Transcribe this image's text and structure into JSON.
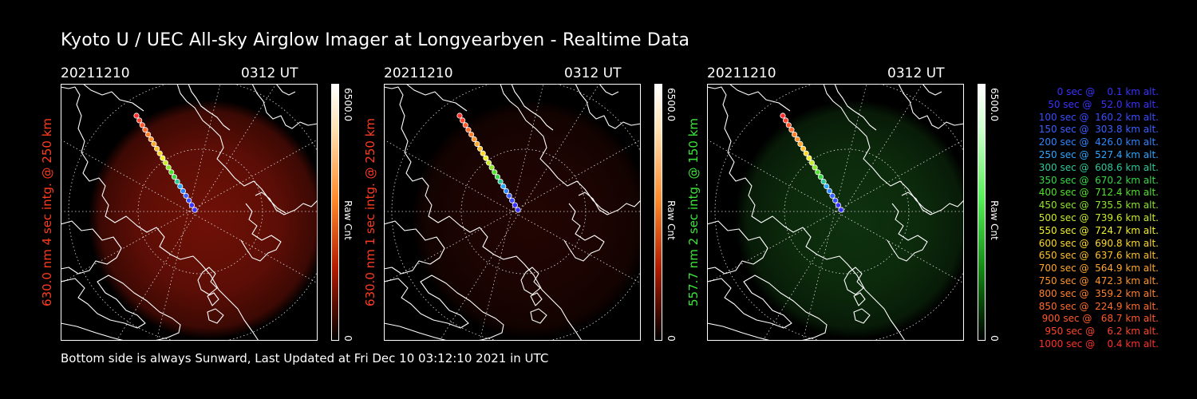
{
  "title": "Kyoto U / UEC All-sky Airglow Imager at Longyearbyen - Realtime Data",
  "footer": "Bottom side is always Sunward, Last Updated at Fri Dec 10 03:12:10 2021 in UTC",
  "colorbar": {
    "max_label": "6500.0",
    "min_label": "0",
    "unit_label": "Raw Cnt"
  },
  "panels": [
    {
      "date": "20211210",
      "time": "0312 UT",
      "side_label": "630.0 nm 4 sec intg. @ 250 km",
      "side_color": "#ff3b1f",
      "glow": "red",
      "bright": 0.85
    },
    {
      "date": "20211210",
      "time": "0312 UT",
      "side_label": "630.0 nm 1 sec intg. @ 250 km",
      "side_color": "#ff3b1f",
      "glow": "red",
      "bright": 0.25
    },
    {
      "date": "20211210",
      "time": "0312 UT",
      "side_label": "557.7 nm 2 sec intg. @ 150 km",
      "side_color": "#3ce43c",
      "glow": "green",
      "bright": 0.5
    }
  ],
  "legend": [
    {
      "text": "   0 sec @    0.1 km alt.",
      "color": "#3a32ff"
    },
    {
      "text": "  50 sec @   52.0 km alt.",
      "color": "#3a32ff"
    },
    {
      "text": " 100 sec @  160.2 km alt.",
      "color": "#3a4cff"
    },
    {
      "text": " 150 sec @  303.8 km alt.",
      "color": "#3a60ff"
    },
    {
      "text": " 200 sec @  426.0 km alt.",
      "color": "#2f86ff"
    },
    {
      "text": " 250 sec @  527.4 km alt.",
      "color": "#2fa6ff"
    },
    {
      "text": " 300 sec @  608.6 km alt.",
      "color": "#2fc89a"
    },
    {
      "text": " 350 sec @  670.2 km alt.",
      "color": "#38d848"
    },
    {
      "text": " 400 sec @  712.4 km alt.",
      "color": "#52e22c"
    },
    {
      "text": " 450 sec @  735.5 km alt.",
      "color": "#8ee62c"
    },
    {
      "text": " 500 sec @  739.6 km alt.",
      "color": "#c8ec2c"
    },
    {
      "text": " 550 sec @  724.7 km alt.",
      "color": "#f0f02c"
    },
    {
      "text": " 600 sec @  690.8 km alt.",
      "color": "#ffd82c"
    },
    {
      "text": " 650 sec @  637.6 km alt.",
      "color": "#ffc02c"
    },
    {
      "text": " 700 sec @  564.9 km alt.",
      "color": "#ffa82c"
    },
    {
      "text": " 750 sec @  472.3 km alt.",
      "color": "#ff942c"
    },
    {
      "text": " 800 sec @  359.2 km alt.",
      "color": "#ff802c"
    },
    {
      "text": " 850 sec @  224.9 km alt.",
      "color": "#ff6c2c"
    },
    {
      "text": " 900 sec @   68.7 km alt.",
      "color": "#ff582c"
    },
    {
      "text": " 950 sec @    6.2 km alt.",
      "color": "#ff442c"
    },
    {
      "text": "1000 sec @    0.4 km alt.",
      "color": "#ff302c"
    }
  ]
}
